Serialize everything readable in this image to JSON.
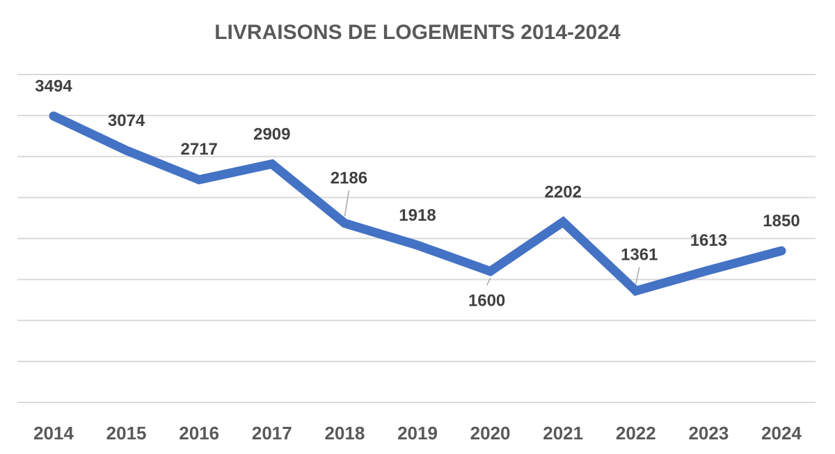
{
  "chart_data": {
    "type": "line",
    "title": "LIVRAISONS DE LOGEMENTS 2014-2024",
    "xlabel": "",
    "ylabel": "",
    "categories": [
      "2014",
      "2015",
      "2016",
      "2017",
      "2018",
      "2019",
      "2020",
      "2021",
      "2022",
      "2023",
      "2024"
    ],
    "series": [
      {
        "name": "Livraisons de logements",
        "values": [
          3494,
          3074,
          2717,
          2909,
          2186,
          1918,
          1600,
          2202,
          1361,
          1613,
          1850
        ]
      }
    ],
    "ylim": [
      0,
      4000
    ],
    "grid": true,
    "show_y_axis_labels": false,
    "data_labels": true,
    "colors": {
      "line": "#4472c4",
      "grid": "#d9d9d9",
      "text": "#595959"
    }
  }
}
